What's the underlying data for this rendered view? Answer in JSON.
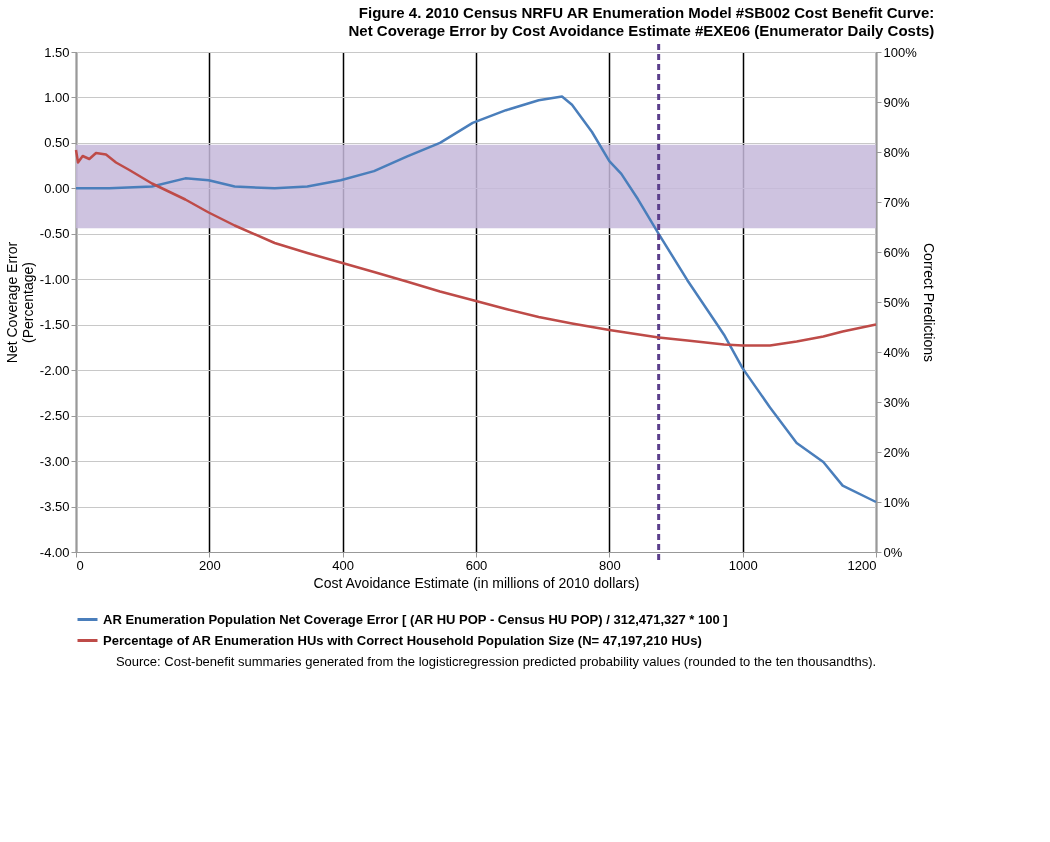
{
  "chart_data": {
    "type": "line",
    "title": "Figure 4.  2010 Census NRFU AR Enumeration Model #SB002 Cost Benefit Curve:",
    "subtitle": "Net Coverage Error by Cost Avoidance Estimate #EXE06  (Enumerator Daily  Costs)",
    "xlabel": "Cost Avoidance Estimate (in millions of 2010 dollars)",
    "ylabel": "Net Coverage Error\n(Percentage)",
    "y2label": "Correct Predictions",
    "xlim": [
      0,
      1200
    ],
    "xticks": [
      0,
      200,
      400,
      600,
      800,
      1000,
      1200
    ],
    "ylim": [
      -4.0,
      1.5
    ],
    "yticks": [
      {
        "value": -4.0,
        "label": "-4.00"
      },
      {
        "value": -3.5,
        "label": "-3.50"
      },
      {
        "value": -3.0,
        "label": "-3.00"
      },
      {
        "value": -2.5,
        "label": "-2.50"
      },
      {
        "value": -2.0,
        "label": "-2.00"
      },
      {
        "value": -1.5,
        "label": "-1.50"
      },
      {
        "value": -1.0,
        "label": "-1.00"
      },
      {
        "value": -0.5,
        "label": "-0.50"
      },
      {
        "value": 0,
        "label": "0.00"
      },
      {
        "value": 0.5,
        "label": "0.50"
      },
      {
        "value": 1.0,
        "label": "1.00"
      },
      {
        "value": 1.5,
        "label": "1.50"
      }
    ],
    "y2lim": [
      0,
      100
    ],
    "y2ticks": [
      {
        "value": 0,
        "label": "0%"
      },
      {
        "value": 10,
        "label": "10%"
      },
      {
        "value": 20,
        "label": "20%"
      },
      {
        "value": 30,
        "label": "30%"
      },
      {
        "value": 40,
        "label": "40%"
      },
      {
        "value": 50,
        "label": "50%"
      },
      {
        "value": 60,
        "label": "60%"
      },
      {
        "value": 70,
        "label": "70%"
      },
      {
        "value": 80,
        "label": "80%"
      },
      {
        "value": 90,
        "label": "90%"
      },
      {
        "value": 100,
        "label": "100%"
      }
    ],
    "grid": true,
    "legend": "bottom",
    "marker": "none",
    "line_style": "solid",
    "series": [
      {
        "name": "AR Enumeration Population Net Coverage Error [ (AR HU POP - Census HU POP) / 312,471,327 * 100 ]",
        "color": "#4a7ebb",
        "x": [
          0,
          50,
          114,
          164,
          199,
          238,
          298,
          347,
          397,
          447,
          496,
          546,
          595,
          645,
          694,
          729,
          744,
          774,
          800,
          818,
          843,
          874,
          917,
          962,
          972,
          1000,
          1041,
          1081,
          1121,
          1150,
          1200
        ],
        "values": [
          0.0,
          0.0,
          0.02,
          0.11,
          0.09,
          0.02,
          0.0,
          0.02,
          0.09,
          0.19,
          0.35,
          0.5,
          0.72,
          0.86,
          0.97,
          1.01,
          0.92,
          0.62,
          0.3,
          0.16,
          -0.12,
          -0.5,
          -1.01,
          -1.5,
          -1.61,
          -1.98,
          -2.41,
          -2.8,
          -3.01,
          -3.27,
          -3.45
        ]
      },
      {
        "name": "Percentage of AR Enumeration HUs with Correct Household Population Size (N= 47,197,210 HUs)",
        "color": "#be4b48",
        "axis": "y2",
        "x": [
          0,
          3,
          10,
          20,
          30,
          45,
          60,
          80,
          114,
          164,
          199,
          238,
          298,
          347,
          397,
          447,
          496,
          546,
          600,
          645,
          694,
          744,
          800,
          874,
          917,
          972,
          1000,
          1041,
          1081,
          1121,
          1150,
          1200
        ],
        "values": [
          80.4,
          77.9,
          79.2,
          78.6,
          79.8,
          79.5,
          77.9,
          76.4,
          73.7,
          70.5,
          67.9,
          65.3,
          61.8,
          59.8,
          57.9,
          56.0,
          54.1,
          52.1,
          50.2,
          48.6,
          47.0,
          45.7,
          44.4,
          42.9,
          42.3,
          41.5,
          41.3,
          41.3,
          42.1,
          43.1,
          44.1,
          45.5
        ]
      }
    ],
    "bands": [
      {
        "axis": "y",
        "from": -0.44,
        "to": 0.48,
        "color": "#c5b9da"
      }
    ],
    "ref_lines": [
      {
        "axis": "x",
        "value": 874,
        "color": "#5b3f8c",
        "line_style": "dashed"
      }
    ],
    "annotations": [
      "Source: Cost-benefit summaries generated from the logisticregression predicted probability values (rounded to the ten thousandths)."
    ]
  }
}
